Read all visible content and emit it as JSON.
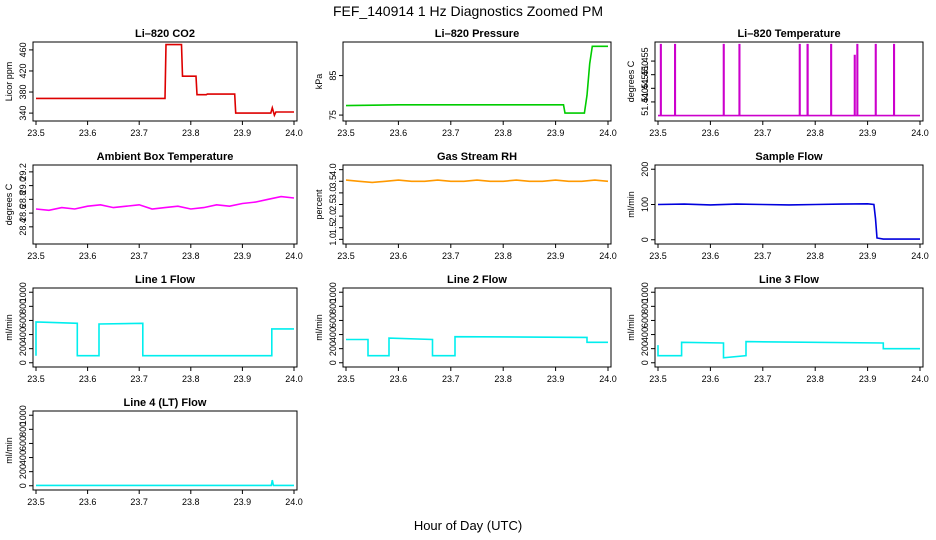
{
  "page": {
    "title": "FEF_140914  1 Hz Diagnostics Zoomed PM",
    "xlabel": "Hour of Day (UTC)"
  },
  "chart_data": [
    {
      "type": "line",
      "title": "Li–820 CO2",
      "ylabel": "Licor ppm",
      "color": "#dd0000",
      "xlim": [
        23.5,
        24.0
      ],
      "xticks": [
        23.5,
        23.6,
        23.7,
        23.8,
        23.9,
        24.0
      ],
      "ylim": [
        325,
        475
      ],
      "yticks": [
        340,
        380,
        420,
        460
      ],
      "series": [
        {
          "x": [
            23.5,
            23.75,
            23.752,
            23.782,
            23.784,
            23.81,
            23.812,
            23.83,
            23.832,
            23.885,
            23.887,
            23.955,
            23.958,
            23.962,
            23.965,
            24.0
          ],
          "y": [
            368,
            368,
            470,
            470,
            410,
            410,
            375,
            375,
            376,
            376,
            340,
            340,
            350,
            336,
            342,
            342
          ]
        }
      ]
    },
    {
      "type": "line",
      "title": "Li–820 Pressure",
      "ylabel": "kPa",
      "color": "#00cc00",
      "xlim": [
        23.5,
        24.0
      ],
      "xticks": [
        23.5,
        23.6,
        23.7,
        23.8,
        23.9,
        24.0
      ],
      "ylim": [
        73.5,
        93.5
      ],
      "yticks": [
        75,
        85
      ],
      "series": [
        {
          "x": [
            23.5,
            23.6,
            23.7,
            23.8,
            23.9,
            23.915,
            23.918,
            23.955,
            23.96,
            23.965,
            23.97,
            24.0
          ],
          "y": [
            77.4,
            77.6,
            77.6,
            77.6,
            77.6,
            77.6,
            75.5,
            75.5,
            80,
            88,
            92.4,
            92.4
          ]
        }
      ]
    },
    {
      "type": "line",
      "title": "Li–820 Temperature",
      "ylabel": "degrees C",
      "color": "#cc00cc",
      "xlim": [
        23.5,
        24.0
      ],
      "xticks": [
        23.5,
        23.6,
        23.7,
        23.8,
        23.9,
        24.0
      ],
      "ylim": [
        51.433,
        51.462
      ],
      "yticks": [
        51.44,
        51.445,
        51.45,
        51.455
      ],
      "series": [
        {
          "x": [
            23.5,
            23.505,
            23.505,
            23.506,
            23.506,
            23.532,
            23.532,
            23.533,
            23.533,
            23.625,
            23.625,
            23.626,
            23.626,
            23.655,
            23.655,
            23.656,
            23.656,
            23.77,
            23.77,
            23.771,
            23.771,
            23.785,
            23.785,
            23.786,
            23.786,
            23.83,
            23.83,
            23.831,
            23.831,
            23.875,
            23.875,
            23.876,
            23.876,
            23.88,
            23.88,
            23.881,
            23.881,
            23.915,
            23.915,
            23.916,
            23.916,
            23.95,
            23.95,
            23.951,
            23.951,
            24.0
          ],
          "y": [
            51.435,
            51.435,
            51.461,
            51.461,
            51.435,
            51.435,
            51.461,
            51.461,
            51.435,
            51.435,
            51.461,
            51.461,
            51.435,
            51.435,
            51.461,
            51.461,
            51.435,
            51.435,
            51.461,
            51.461,
            51.435,
            51.435,
            51.461,
            51.461,
            51.435,
            51.435,
            51.461,
            51.461,
            51.435,
            51.435,
            51.457,
            51.457,
            51.435,
            51.435,
            51.461,
            51.461,
            51.435,
            51.435,
            51.461,
            51.461,
            51.435,
            51.435,
            51.461,
            51.461,
            51.435,
            51.435
          ]
        }
      ]
    },
    {
      "type": "line",
      "title": "Ambient Box Temperature",
      "ylabel": "degrees C",
      "color": "#ff00ff",
      "xlim": [
        23.5,
        24.0
      ],
      "xticks": [
        23.5,
        23.6,
        23.7,
        23.8,
        23.9,
        24.0
      ],
      "ylim": [
        28.15,
        29.3
      ],
      "yticks": [
        28.4,
        28.6,
        28.8,
        29.0,
        29.2
      ],
      "series": [
        {
          "x": [
            23.5,
            23.525,
            23.55,
            23.575,
            23.6,
            23.625,
            23.65,
            23.675,
            23.7,
            23.725,
            23.75,
            23.775,
            23.8,
            23.825,
            23.85,
            23.875,
            23.9,
            23.925,
            23.95,
            23.975,
            24.0
          ],
          "y": [
            28.66,
            28.64,
            28.68,
            28.66,
            28.7,
            28.72,
            28.68,
            28.7,
            28.72,
            28.66,
            28.68,
            28.7,
            28.66,
            28.68,
            28.72,
            28.7,
            28.74,
            28.76,
            28.8,
            28.84,
            28.82
          ]
        }
      ]
    },
    {
      "type": "line",
      "title": "Gas Stream RH",
      "ylabel": "percent",
      "color": "#ff9900",
      "xlim": [
        23.5,
        24.0
      ],
      "xticks": [
        23.5,
        23.6,
        23.7,
        23.8,
        23.9,
        24.0
      ],
      "ylim": [
        0.8,
        4.2
      ],
      "yticks": [
        1.0,
        1.5,
        2.0,
        2.5,
        3.0,
        3.5,
        4.0
      ],
      "series": [
        {
          "x": [
            23.5,
            23.525,
            23.55,
            23.575,
            23.6,
            23.625,
            23.65,
            23.675,
            23.7,
            23.725,
            23.75,
            23.775,
            23.8,
            23.825,
            23.85,
            23.875,
            23.9,
            23.925,
            23.95,
            23.975,
            24.0
          ],
          "y": [
            3.55,
            3.5,
            3.45,
            3.5,
            3.55,
            3.5,
            3.5,
            3.55,
            3.5,
            3.5,
            3.55,
            3.5,
            3.5,
            3.55,
            3.5,
            3.5,
            3.55,
            3.5,
            3.5,
            3.55,
            3.5
          ]
        }
      ]
    },
    {
      "type": "line",
      "title": "Sample Flow",
      "ylabel": "ml/min",
      "color": "#0000dd",
      "xlim": [
        23.5,
        24.0
      ],
      "xticks": [
        23.5,
        23.6,
        23.7,
        23.8,
        23.9,
        24.0
      ],
      "ylim": [
        -12,
        212
      ],
      "yticks": [
        0,
        100,
        200
      ],
      "series": [
        {
          "x": [
            23.5,
            23.55,
            23.6,
            23.65,
            23.7,
            23.75,
            23.8,
            23.85,
            23.9,
            23.912,
            23.915,
            23.918,
            23.93,
            24.0
          ],
          "y": [
            100,
            101,
            99,
            101,
            100,
            99,
            100,
            101,
            102,
            100,
            60,
            5,
            2,
            2
          ]
        }
      ]
    },
    {
      "type": "line",
      "title": "Line 1 Flow",
      "ylabel": "ml/min",
      "color": "#00eeee",
      "xlim": [
        23.5,
        24.0
      ],
      "xticks": [
        23.5,
        23.6,
        23.7,
        23.8,
        23.9,
        24.0
      ],
      "ylim": [
        -60,
        1060
      ],
      "yticks": [
        0,
        200,
        400,
        600,
        800,
        1000
      ],
      "series": [
        {
          "x": [
            23.5,
            23.5,
            23.58,
            23.58,
            23.622,
            23.622,
            23.707,
            23.707,
            23.957,
            23.957,
            24.0
          ],
          "y": [
            100,
            580,
            560,
            100,
            100,
            550,
            560,
            100,
            100,
            480,
            480
          ]
        }
      ]
    },
    {
      "type": "line",
      "title": "Line 2 Flow",
      "ylabel": "ml/min",
      "color": "#00eeee",
      "xlim": [
        23.5,
        24.0
      ],
      "xticks": [
        23.5,
        23.6,
        23.7,
        23.8,
        23.9,
        24.0
      ],
      "ylim": [
        -60,
        1060
      ],
      "yticks": [
        0,
        200,
        400,
        600,
        800,
        1000
      ],
      "series": [
        {
          "x": [
            23.5,
            23.542,
            23.542,
            23.582,
            23.582,
            23.665,
            23.665,
            23.708,
            23.708,
            23.96,
            23.96,
            24.0
          ],
          "y": [
            330,
            330,
            100,
            100,
            350,
            330,
            100,
            100,
            370,
            360,
            290,
            290
          ]
        }
      ]
    },
    {
      "type": "line",
      "title": "Line 3 Flow",
      "ylabel": "ml/min",
      "color": "#00eeee",
      "xlim": [
        23.5,
        24.0
      ],
      "xticks": [
        23.5,
        23.6,
        23.7,
        23.8,
        23.9,
        24.0
      ],
      "ylim": [
        -60,
        1060
      ],
      "yticks": [
        0,
        200,
        400,
        600,
        800,
        1000
      ],
      "series": [
        {
          "x": [
            23.5,
            23.5,
            23.545,
            23.545,
            23.625,
            23.625,
            23.668,
            23.668,
            23.93,
            23.93,
            24.0
          ],
          "y": [
            250,
            100,
            100,
            290,
            280,
            70,
            100,
            300,
            280,
            200,
            200
          ]
        }
      ]
    },
    {
      "type": "line",
      "title": "Line 4 (LT) Flow",
      "ylabel": "ml/min",
      "color": "#00eeee",
      "xlim": [
        23.5,
        24.0
      ],
      "xticks": [
        23.5,
        23.6,
        23.7,
        23.8,
        23.9,
        24.0
      ],
      "ylim": [
        -60,
        1060
      ],
      "yticks": [
        0,
        200,
        400,
        600,
        800,
        1000
      ],
      "series": [
        {
          "x": [
            23.5,
            23.956,
            23.958,
            23.96,
            23.962,
            24.0
          ],
          "y": [
            5,
            5,
            80,
            5,
            5,
            5
          ]
        }
      ]
    }
  ]
}
